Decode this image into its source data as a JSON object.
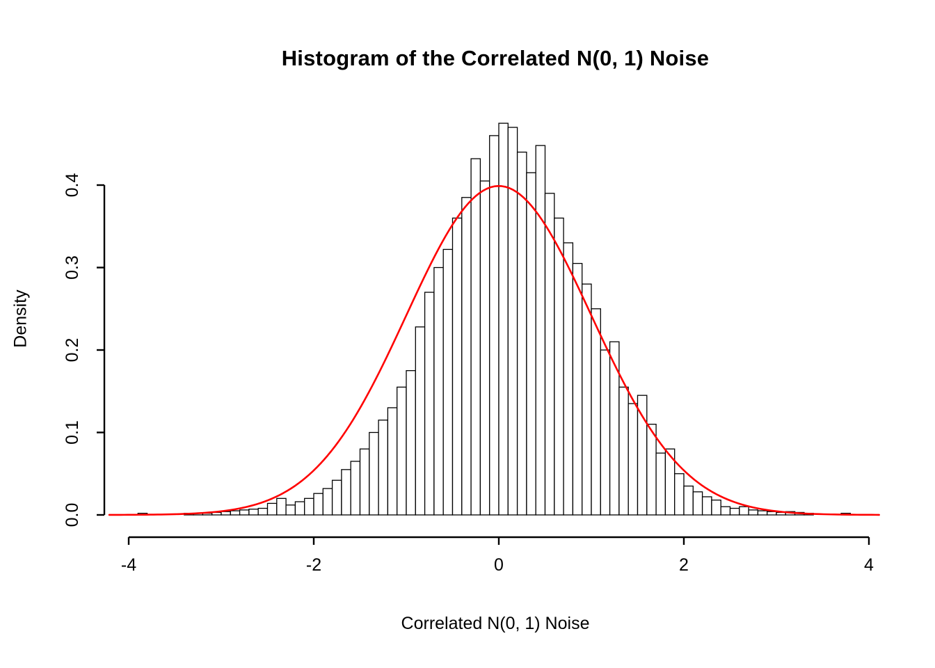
{
  "chart_data": {
    "type": "bar",
    "subtype": "histogram",
    "title": "Histogram of the Correlated N(0, 1) Noise",
    "xlabel": "Correlated N(0, 1) Noise",
    "ylabel": "Density",
    "xlim": [
      -4,
      4
    ],
    "ylim": [
      0,
      0.4
    ],
    "grid": false,
    "legend": "none",
    "x_ticks": [
      -4,
      -2,
      0,
      2,
      4
    ],
    "x_tick_labels": [
      "-4",
      "-2",
      "0",
      "2",
      "4"
    ],
    "y_ticks": [
      0.0,
      0.1,
      0.2,
      0.3,
      0.4
    ],
    "y_tick_labels": [
      "0.0",
      "0.1",
      "0.2",
      "0.3",
      "0.4"
    ],
    "bin_width": 0.1,
    "bar_fill": "#FFFFFF",
    "bar_stroke": "#000000",
    "bin_left_edges": [
      -3.9,
      -3.8,
      -3.7,
      -3.6,
      -3.5,
      -3.4,
      -3.3,
      -3.2,
      -3.1,
      -3.0,
      -2.9,
      -2.8,
      -2.7,
      -2.6,
      -2.5,
      -2.4,
      -2.3,
      -2.2,
      -2.1,
      -2.0,
      -1.9,
      -1.8,
      -1.7,
      -1.6,
      -1.5,
      -1.4,
      -1.3,
      -1.2,
      -1.1,
      -1.0,
      -0.9,
      -0.8,
      -0.7,
      -0.6,
      -0.5,
      -0.4,
      -0.3,
      -0.2,
      -0.1,
      0.0,
      0.1,
      0.2,
      0.3,
      0.4,
      0.5,
      0.6,
      0.7,
      0.8,
      0.9,
      1.0,
      1.1,
      1.2,
      1.3,
      1.4,
      1.5,
      1.6,
      1.7,
      1.8,
      1.9,
      2.0,
      2.1,
      2.2,
      2.3,
      2.4,
      2.5,
      2.6,
      2.7,
      2.8,
      2.9,
      3.0,
      3.1,
      3.2,
      3.3,
      3.4,
      3.5,
      3.6,
      3.7
    ],
    "densities": [
      0.002,
      0,
      0,
      0,
      0,
      0.002,
      0.002,
      0.002,
      0.003,
      0.004,
      0.005,
      0.006,
      0.007,
      0.008,
      0.014,
      0.02,
      0.012,
      0.016,
      0.02,
      0.026,
      0.032,
      0.042,
      0.055,
      0.065,
      0.08,
      0.1,
      0.115,
      0.13,
      0.155,
      0.175,
      0.228,
      0.27,
      0.3,
      0.322,
      0.36,
      0.385,
      0.432,
      0.405,
      0.46,
      0.475,
      0.47,
      0.44,
      0.415,
      0.448,
      0.39,
      0.36,
      0.33,
      0.305,
      0.28,
      0.25,
      0.2,
      0.21,
      0.155,
      0.135,
      0.145,
      0.11,
      0.075,
      0.08,
      0.05,
      0.035,
      0.028,
      0.022,
      0.018,
      0.01,
      0.008,
      0.01,
      0.006,
      0.005,
      0.004,
      0.003,
      0.004,
      0.003,
      0.002,
      0,
      0,
      0,
      0.002
    ],
    "overlay_curve": {
      "type": "normal-density",
      "mean": 0,
      "sd": 1,
      "peak": 0.3989,
      "color": "#FF0000",
      "x_range": [
        -4.21,
        4.11
      ]
    }
  }
}
